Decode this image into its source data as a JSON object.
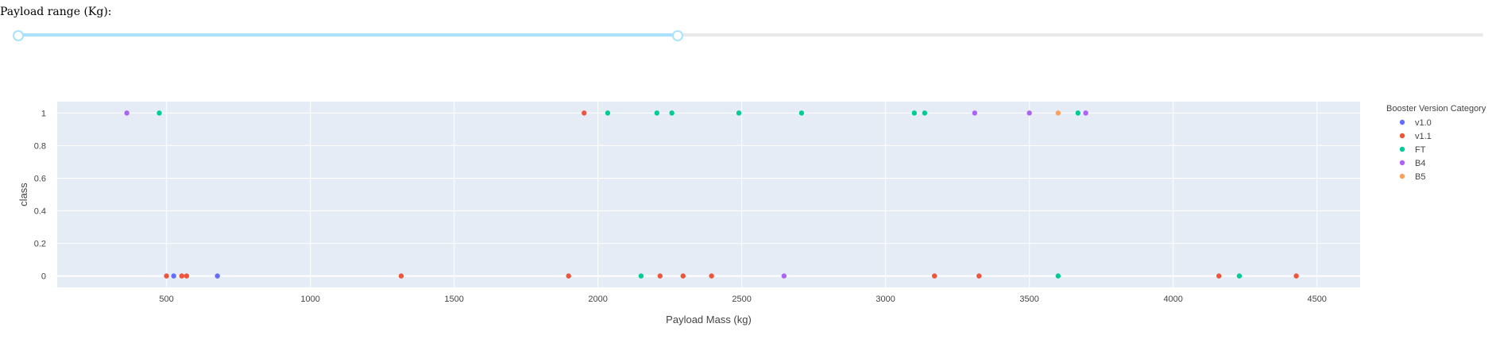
{
  "slider": {
    "label": "Payload range (Kg):",
    "min": 0,
    "max": 10000,
    "selected": [
      0,
      4500
    ]
  },
  "colors": {
    "plot_bg": "#e5ecf6",
    "grid": "#ffffff",
    "slider_track": "#abe2fb"
  },
  "chart_data": {
    "type": "scatter",
    "title": "",
    "xlabel": "Payload Mass (kg)",
    "ylabel": "class",
    "xlim": [
      120,
      4650
    ],
    "ylim": [
      -0.07,
      1.07
    ],
    "x_ticks": [
      500,
      1000,
      1500,
      2000,
      2500,
      3000,
      3500,
      4000,
      4500
    ],
    "y_ticks": [
      0,
      0.2,
      0.4,
      0.6,
      0.8,
      1
    ],
    "y_tick_labels": [
      "0",
      "0.2",
      "0.4",
      "0.6",
      "0.8",
      "1"
    ],
    "grid": true,
    "legend": {
      "title": "Booster Version Category",
      "placement": "right"
    },
    "series": [
      {
        "name": "v1.0",
        "color": "#636efa",
        "points": [
          [
            525,
            0
          ],
          [
            677,
            0
          ]
        ]
      },
      {
        "name": "v1.1",
        "color": "#ef553b",
        "points": [
          [
            500,
            0
          ],
          [
            553,
            0
          ],
          [
            570,
            0
          ],
          [
            1316,
            0
          ],
          [
            1898,
            0
          ],
          [
            1952,
            1
          ],
          [
            2216,
            0
          ],
          [
            2296,
            0
          ],
          [
            2395,
            0
          ],
          [
            3170,
            0
          ],
          [
            3325,
            0
          ],
          [
            4159,
            0
          ],
          [
            4428,
            0
          ]
        ]
      },
      {
        "name": "FT",
        "color": "#00cc96",
        "points": [
          [
            475,
            1
          ],
          [
            2034,
            1
          ],
          [
            2150,
            0
          ],
          [
            2205,
            1
          ],
          [
            2257,
            1
          ],
          [
            2490,
            1
          ],
          [
            2708,
            1
          ],
          [
            3100,
            1
          ],
          [
            3136,
            1
          ],
          [
            3600,
            0
          ],
          [
            3669,
            1
          ],
          [
            4230,
            0
          ]
        ]
      },
      {
        "name": "B4",
        "color": "#ab63fa",
        "points": [
          [
            362,
            1
          ],
          [
            2647,
            0
          ],
          [
            3310,
            1
          ],
          [
            3500,
            1
          ],
          [
            3696,
            1
          ]
        ]
      },
      {
        "name": "B5",
        "color": "#ffa15a",
        "points": [
          [
            3600,
            1
          ]
        ]
      }
    ]
  }
}
